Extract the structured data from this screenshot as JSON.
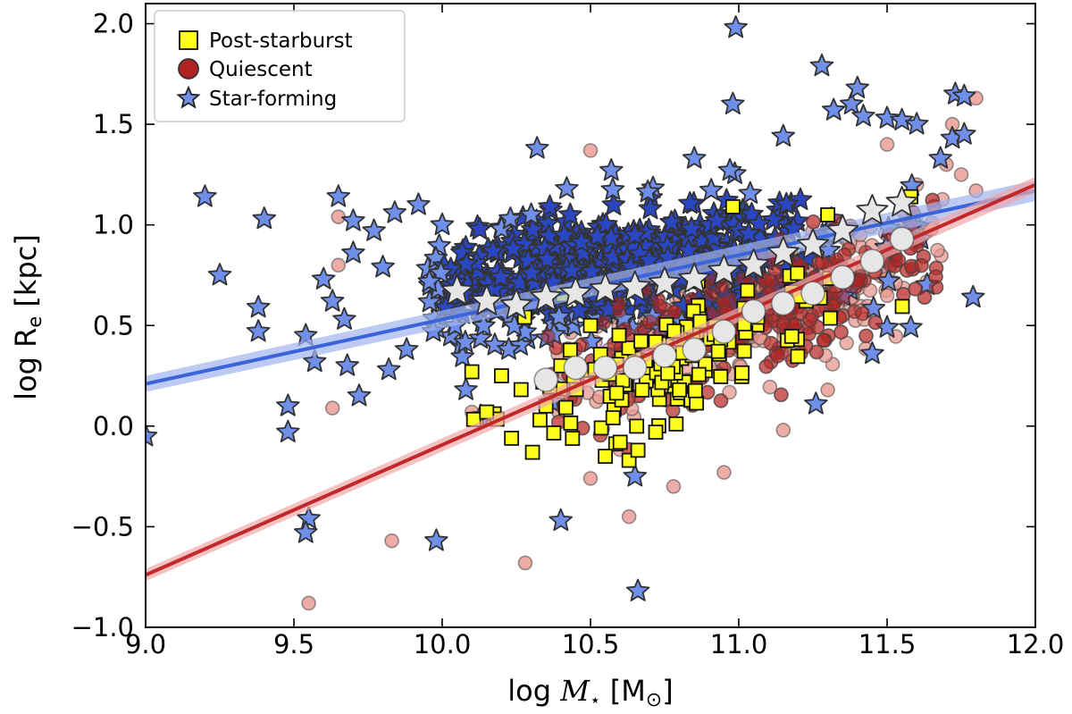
{
  "chart_data": {
    "type": "scatter",
    "title": "",
    "xlabel": "log M⋆  [M⊙]",
    "ylabel": "log Rₑ [kpc]",
    "xlim": [
      9.0,
      12.0
    ],
    "ylim": [
      -1.0,
      2.1
    ],
    "xticks": [
      9.0,
      9.5,
      10.0,
      10.5,
      11.0,
      11.5,
      12.0
    ],
    "xtick_labels": [
      "9.0",
      "9.5",
      "10.0",
      "10.5",
      "11.0",
      "11.5",
      "12.0"
    ],
    "yticks": [
      -1.0,
      -0.5,
      0.0,
      0.5,
      1.0,
      1.5,
      2.0
    ],
    "ytick_labels": [
      "−1.0",
      "−0.5",
      "0.0",
      "0.5",
      "1.0",
      "1.5",
      "2.0"
    ],
    "grid": false,
    "legend_position": "top-left",
    "colors": {
      "post_starburst": "#ffff1e",
      "quiescent": "#b22222",
      "quiescent_faint": "#e89890",
      "star_forming": "#6f8fe8",
      "star_forming_dark": "#2a46c0",
      "fit_blue": "#3a64d8",
      "fit_red": "#c0282a",
      "median": "#e6e6e6"
    },
    "legend": [
      {
        "label": "Post-starburst",
        "marker": "square"
      },
      {
        "label": "Quiescent",
        "marker": "circle"
      },
      {
        "label": "Star-forming",
        "marker": "star"
      }
    ],
    "fits": [
      {
        "name": "star-forming fit",
        "x": [
          9.0,
          12.0
        ],
        "y": [
          0.21,
          1.17
        ],
        "band": 0.04
      },
      {
        "name": "quiescent fit",
        "x": [
          9.0,
          12.0
        ],
        "y": [
          -0.74,
          1.2
        ],
        "band": 0.03
      }
    ],
    "medians_star_forming": [
      [
        10.05,
        0.67
      ],
      [
        10.15,
        0.62
      ],
      [
        10.25,
        0.6
      ],
      [
        10.35,
        0.64
      ],
      [
        10.45,
        0.66
      ],
      [
        10.55,
        0.68
      ],
      [
        10.65,
        0.69
      ],
      [
        10.75,
        0.71
      ],
      [
        10.85,
        0.73
      ],
      [
        10.95,
        0.77
      ],
      [
        11.05,
        0.8
      ],
      [
        11.15,
        0.86
      ],
      [
        11.25,
        0.9
      ],
      [
        11.35,
        0.97
      ],
      [
        11.45,
        1.07
      ],
      [
        11.55,
        1.11
      ]
    ],
    "medians_quiescent": [
      [
        10.35,
        0.23
      ],
      [
        10.45,
        0.29
      ],
      [
        10.55,
        0.29
      ],
      [
        10.65,
        0.29
      ],
      [
        10.75,
        0.35
      ],
      [
        10.85,
        0.38
      ],
      [
        10.95,
        0.47
      ],
      [
        11.05,
        0.57
      ],
      [
        11.15,
        0.61
      ],
      [
        11.25,
        0.66
      ],
      [
        11.35,
        0.74
      ],
      [
        11.45,
        0.82
      ],
      [
        11.55,
        0.93
      ]
    ],
    "outliers_star_forming": [
      [
        9.0,
        -0.05
      ],
      [
        9.2,
        1.14
      ],
      [
        9.25,
        0.75
      ],
      [
        9.38,
        0.59
      ],
      [
        9.38,
        0.47
      ],
      [
        9.4,
        1.03
      ],
      [
        9.48,
        0.1
      ],
      [
        9.48,
        -0.03
      ],
      [
        9.54,
        0.45
      ],
      [
        9.55,
        -0.46
      ],
      [
        9.54,
        -0.53
      ],
      [
        9.57,
        0.32
      ],
      [
        9.6,
        0.73
      ],
      [
        9.63,
        0.62
      ],
      [
        9.65,
        1.14
      ],
      [
        9.67,
        0.53
      ],
      [
        9.68,
        0.3
      ],
      [
        9.72,
        0.15
      ],
      [
        9.7,
        1.02
      ],
      [
        9.7,
        0.86
      ],
      [
        9.77,
        0.97
      ],
      [
        9.8,
        0.79
      ],
      [
        9.82,
        0.28
      ],
      [
        9.84,
        1.06
      ],
      [
        9.88,
        0.38
      ],
      [
        9.92,
        1.1
      ],
      [
        9.97,
        0.47
      ],
      [
        9.98,
        -0.57
      ],
      [
        10.0,
        1.0
      ],
      [
        10.08,
        0.18
      ],
      [
        10.13,
        0.05
      ],
      [
        10.2,
        0.98
      ],
      [
        10.23,
        1.03
      ],
      [
        10.3,
        1.05
      ],
      [
        10.32,
        1.38
      ],
      [
        10.37,
        0.12
      ],
      [
        10.4,
        -0.47
      ],
      [
        10.42,
        1.18
      ],
      [
        10.57,
        1.27
      ],
      [
        10.65,
        -0.25
      ],
      [
        10.66,
        -0.82
      ],
      [
        10.85,
        1.33
      ],
      [
        10.97,
        1.27
      ],
      [
        10.98,
        1.6
      ],
      [
        10.99,
        1.98
      ],
      [
        11.15,
        1.44
      ],
      [
        11.28,
        1.79
      ],
      [
        11.32,
        1.57
      ],
      [
        11.38,
        1.6
      ],
      [
        11.4,
        1.68
      ],
      [
        11.42,
        1.54
      ],
      [
        11.5,
        1.53
      ],
      [
        11.55,
        1.52
      ],
      [
        11.6,
        1.5
      ],
      [
        11.68,
        1.33
      ],
      [
        11.72,
        1.43
      ],
      [
        11.73,
        1.65
      ],
      [
        11.76,
        1.45
      ],
      [
        11.76,
        1.64
      ],
      [
        11.79,
        0.64
      ],
      [
        11.5,
        0.49
      ],
      [
        11.58,
        0.49
      ],
      [
        11.26,
        0.11
      ],
      [
        11.45,
        0.36
      ]
    ],
    "outliers_quiescent": [
      [
        9.55,
        -0.88
      ],
      [
        9.63,
        0.09
      ],
      [
        9.65,
        0.8
      ],
      [
        9.65,
        1.04
      ],
      [
        9.83,
        -0.57
      ],
      [
        10.1,
        0.07
      ],
      [
        10.28,
        -0.68
      ],
      [
        10.5,
        -0.26
      ],
      [
        10.5,
        1.37
      ],
      [
        10.63,
        -0.45
      ],
      [
        10.78,
        -0.3
      ],
      [
        10.95,
        -0.23
      ],
      [
        11.15,
        -0.02
      ],
      [
        11.3,
        0.18
      ],
      [
        11.6,
        1.2
      ],
      [
        11.65,
        0.98
      ],
      [
        11.7,
        1.3
      ],
      [
        11.8,
        1.63
      ],
      [
        11.72,
        1.5
      ],
      [
        11.75,
        1.25
      ],
      [
        11.8,
        1.17
      ],
      [
        11.5,
        1.4
      ]
    ],
    "outliers_post_starburst": [
      [
        10.1,
        0.27
      ],
      [
        10.2,
        0.25
      ],
      [
        10.15,
        0.07
      ],
      [
        10.35,
        0.1
      ],
      [
        10.4,
        0.3
      ],
      [
        10.55,
        -0.15
      ],
      [
        10.6,
        -0.08
      ],
      [
        10.63,
        -0.17
      ],
      [
        10.66,
        -0.12
      ],
      [
        10.72,
        -0.03
      ],
      [
        10.98,
        1.09
      ],
      [
        11.3,
        1.05
      ],
      [
        11.58,
        1.14
      ],
      [
        10.5,
        0.5
      ],
      [
        10.8,
        0.18
      ]
    ],
    "clouds": [
      {
        "name": "star-forming",
        "cx": 10.6,
        "cy": 0.78,
        "sx": 0.38,
        "sy": 0.26,
        "slope": 0.2,
        "n": 560,
        "xmin": 9.95,
        "xmax": 11.65
      },
      {
        "name": "quiescent",
        "cx": 11.05,
        "cy": 0.55,
        "sx": 0.33,
        "sy": 0.27,
        "slope": 0.55,
        "n": 620,
        "xmin": 10.35,
        "xmax": 11.7
      },
      {
        "name": "post-starburst",
        "cx": 10.75,
        "cy": 0.33,
        "sx": 0.27,
        "sy": 0.25,
        "slope": 0.4,
        "n": 130,
        "xmin": 10.1,
        "xmax": 11.6
      }
    ]
  }
}
